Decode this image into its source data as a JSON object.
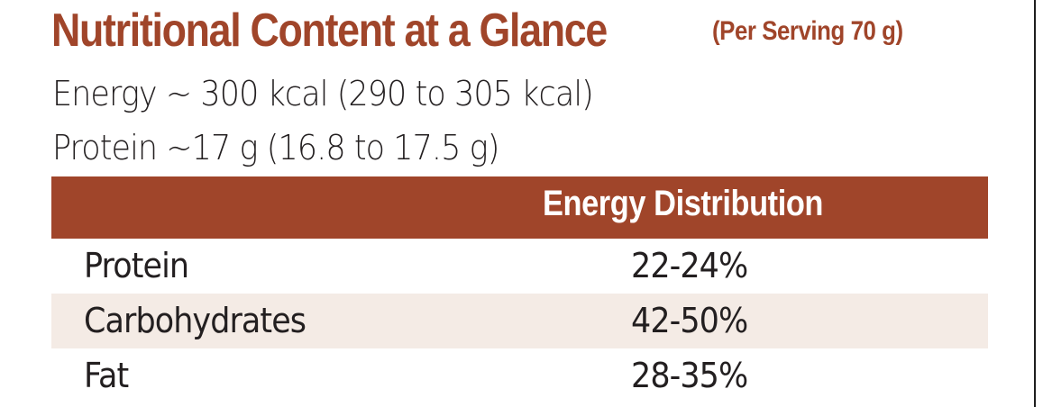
{
  "header": {
    "title": "Nutritional Content at a Glance",
    "serving": "(Per Serving 70 g)"
  },
  "summary": {
    "energy": "Energy ~ 300 kcal (290 to 305 kcal)",
    "protein": "Protein ~17 g (16.8 to 17.5 g)"
  },
  "table": {
    "header": "Energy Distribution",
    "rows": [
      {
        "name": "Protein",
        "value": "22-24%"
      },
      {
        "name": "Carbohydrates",
        "value": "42-50%"
      },
      {
        "name": "Fat",
        "value": "28-35%"
      }
    ]
  },
  "colors": {
    "accent": "#a0452a",
    "row_shade": "#f4ebe5",
    "text": "#231f20"
  }
}
